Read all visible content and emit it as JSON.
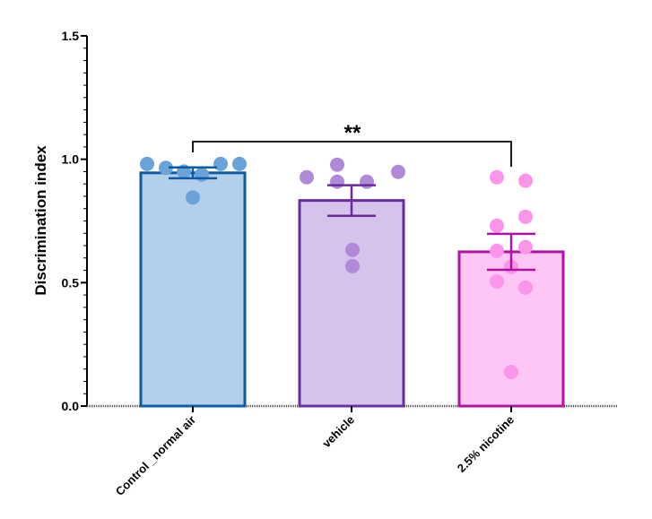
{
  "chart_data": {
    "type": "bar",
    "title": "",
    "xlabel": "",
    "ylabel": "Discrimination index",
    "ylim": [
      0,
      1.5
    ],
    "yticks": [
      "0.0",
      "0.5",
      "1.0",
      "1.5"
    ],
    "grid": false,
    "categories": [
      "Control _normal air",
      "vehicle",
      "2.5% nicotine"
    ],
    "values": [
      0.945,
      0.833,
      0.625
    ],
    "sem": [
      0.022,
      0.062,
      0.073
    ],
    "points": [
      [
        0.981,
        0.965,
        0.95,
        0.938,
        0.981,
        0.981,
        0.845
      ],
      [
        0.927,
        0.978,
        0.909,
        0.909,
        0.949,
        0.633,
        0.567
      ],
      [
        0.927,
        0.913,
        0.731,
        0.767,
        0.629,
        0.644,
        0.564,
        0.505,
        0.48,
        0.138
      ]
    ],
    "colors": {
      "fill": [
        "#b4cfec",
        "#d5c3eb",
        "#fdc6f5"
      ],
      "stroke": [
        "#0e5aa0",
        "#6a2c9c",
        "#b0139f"
      ],
      "dots": [
        "#6aa3d8",
        "#b08ad8",
        "#fc95ea"
      ]
    },
    "significance": {
      "from": 0,
      "to": 2,
      "label": "**"
    }
  }
}
